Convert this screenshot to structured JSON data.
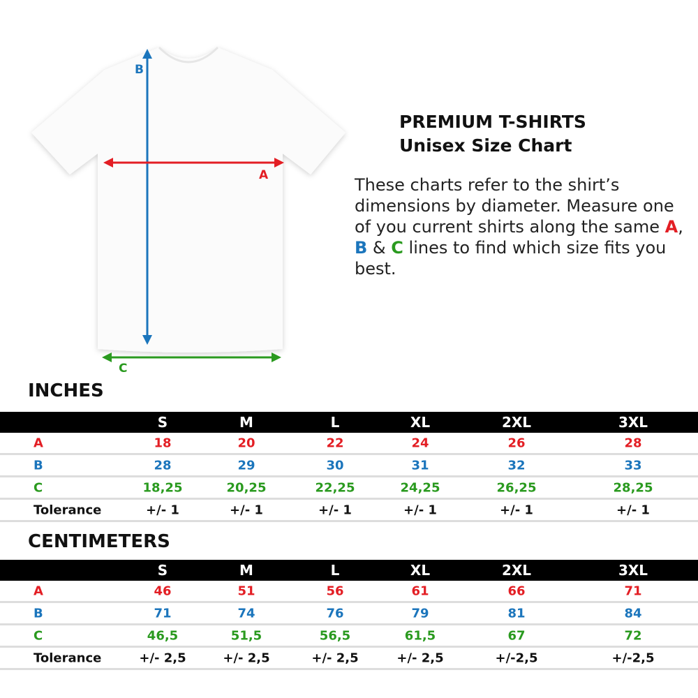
{
  "header": {
    "title": "PREMIUM T-SHIRTS",
    "subtitle": "Unisex Size Chart"
  },
  "description": {
    "part1": "These charts refer to the shirt’s dimensions by diameter. Measure one of you current shirts along the same ",
    "a": "A",
    "sep1": ", ",
    "b": "B",
    "sep2": " & ",
    "c": "C",
    "part2": " lines to find which size fits you best."
  },
  "diagram": {
    "label_a": "A",
    "label_b": "B",
    "label_c": "C"
  },
  "colors": {
    "a": "#e31e24",
    "b": "#1b75bc",
    "c": "#2a9a1f",
    "tolerance": "#111111",
    "header_bg": "#000000"
  },
  "sizes": [
    "S",
    "M",
    "L",
    "XL",
    "2XL",
    "3XL"
  ],
  "tables": [
    {
      "title": "INCHES",
      "rows": [
        {
          "label": "A",
          "color": "a",
          "values": [
            "18",
            "20",
            "22",
            "24",
            "26",
            "28"
          ]
        },
        {
          "label": "B",
          "color": "b",
          "values": [
            "28",
            "29",
            "30",
            "31",
            "32",
            "33"
          ]
        },
        {
          "label": "C",
          "color": "c",
          "values": [
            "18,25",
            "20,25",
            "22,25",
            "24,25",
            "26,25",
            "28,25"
          ]
        },
        {
          "label": "Tolerance",
          "color": "tolerance",
          "values": [
            "+/- 1",
            "+/- 1",
            "+/- 1",
            "+/- 1",
            "+/- 1",
            "+/- 1"
          ]
        }
      ]
    },
    {
      "title": "CENTIMETERS",
      "rows": [
        {
          "label": "A",
          "color": "a",
          "values": [
            "46",
            "51",
            "56",
            "61",
            "66",
            "71"
          ]
        },
        {
          "label": "B",
          "color": "b",
          "values": [
            "71",
            "74",
            "76",
            "79",
            "81",
            "84"
          ]
        },
        {
          "label": "C",
          "color": "c",
          "values": [
            "46,5",
            "51,5",
            "56,5",
            "61,5",
            "67",
            "72"
          ]
        },
        {
          "label": "Tolerance",
          "color": "tolerance",
          "values": [
            "+/- 2,5",
            "+/- 2,5",
            "+/- 2,5",
            "+/- 2,5",
            "+/-2,5",
            "+/-2,5"
          ]
        }
      ]
    }
  ]
}
